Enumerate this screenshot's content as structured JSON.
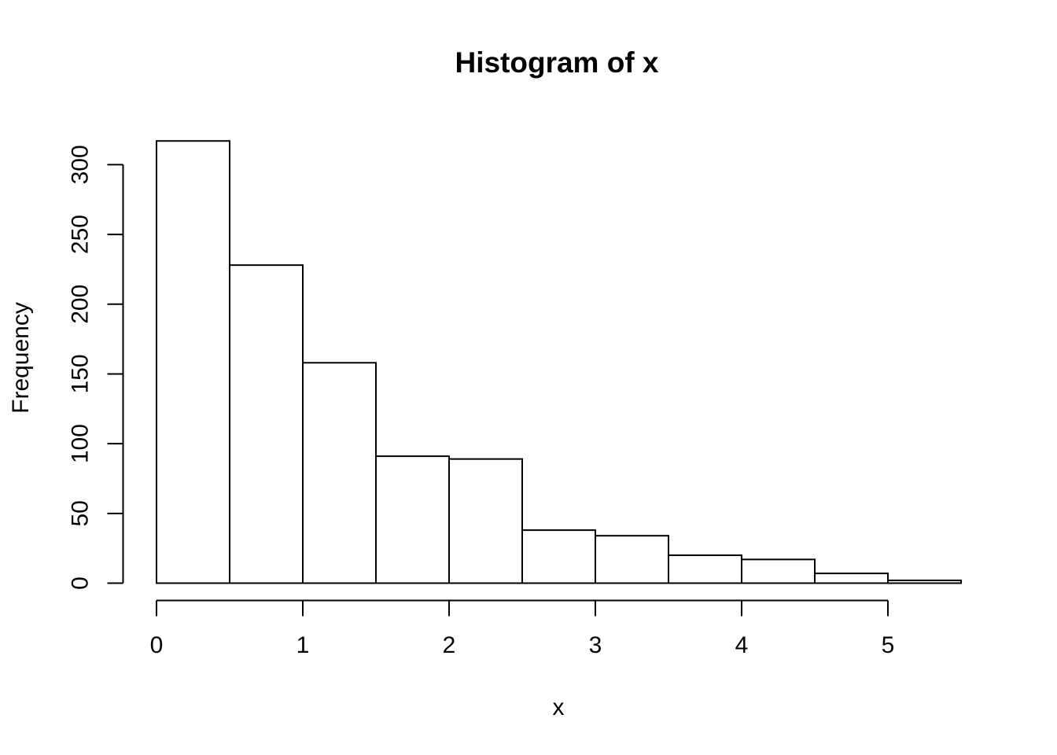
{
  "figure": {
    "background_color": "#ffffff",
    "foreground_color": "#000000"
  },
  "chart_data": {
    "type": "bar",
    "subtype": "histogram",
    "title": "Histogram of x",
    "xlabel": "x",
    "ylabel": "Frequency",
    "bin_breaks": [
      0,
      0.5,
      1,
      1.5,
      2,
      2.5,
      3,
      3.5,
      4,
      4.5,
      5,
      5.5
    ],
    "values": [
      317,
      228,
      158,
      91,
      89,
      38,
      34,
      20,
      17,
      7,
      2
    ],
    "x_ticks": [
      0,
      1,
      2,
      3,
      4,
      5
    ],
    "y_ticks": [
      0,
      50,
      100,
      150,
      200,
      250,
      300
    ],
    "xlim": [
      0,
      5.5
    ],
    "ylim": [
      0,
      300
    ],
    "bar_fill": "#ffffff",
    "bar_stroke": "#000000",
    "axis_color": "#000000",
    "grid": false,
    "legend": "none"
  }
}
